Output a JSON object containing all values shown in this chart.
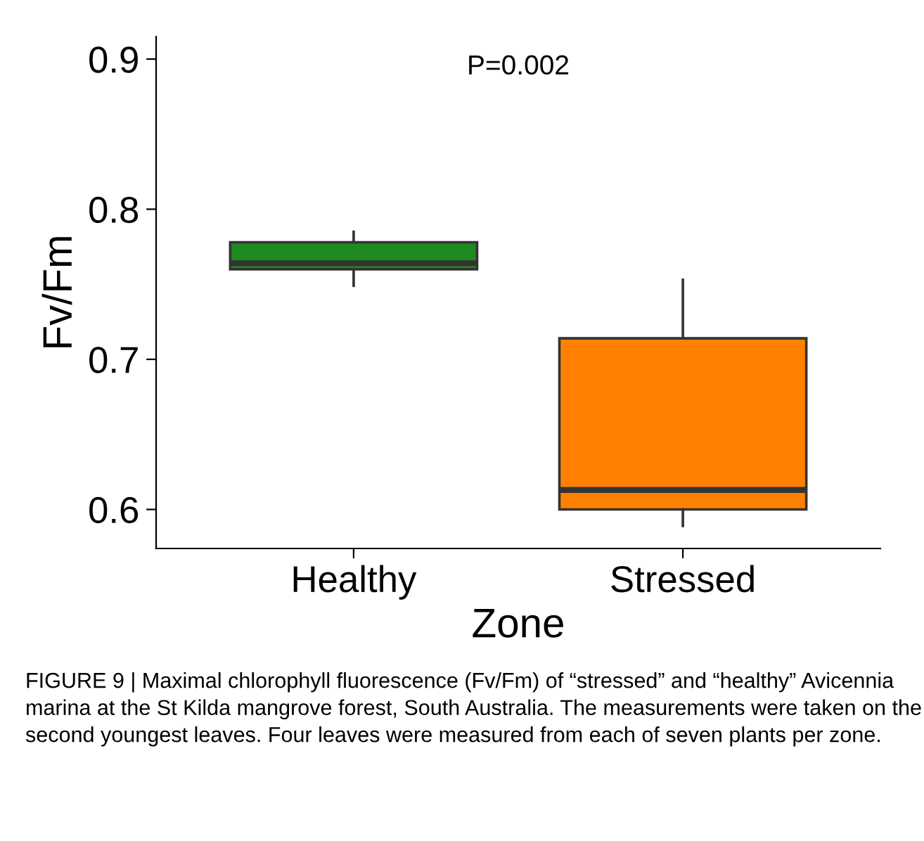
{
  "chart_data": {
    "type": "box",
    "xlabel": "Zone",
    "ylabel": "Fv/Fm",
    "categories": [
      "Healthy",
      "Stressed"
    ],
    "colors": [
      "#1f8a1f",
      "#ff8000"
    ],
    "boxes": [
      {
        "low": 0.749,
        "q1": 0.76,
        "median": 0.764,
        "q3": 0.778,
        "high": 0.785
      },
      {
        "low": 0.589,
        "q1": 0.6,
        "median": 0.613,
        "q3": 0.714,
        "high": 0.753
      }
    ],
    "ylim": [
      0.574,
      0.915
    ],
    "yticks": [
      0.6,
      0.7,
      0.8,
      0.9
    ],
    "grid": false,
    "annotations": [
      "P=0.002",
      "FIGURE 9 | Maximal chlorophyll fluorescence (Fv/Fm) of “stressed” and “healthy” Avicennia marina at the St Kilda mangrove forest, South Australia. The measurements were taken on the second youngest leaves. Four leaves were measured from each of seven plants per zone."
    ]
  }
}
